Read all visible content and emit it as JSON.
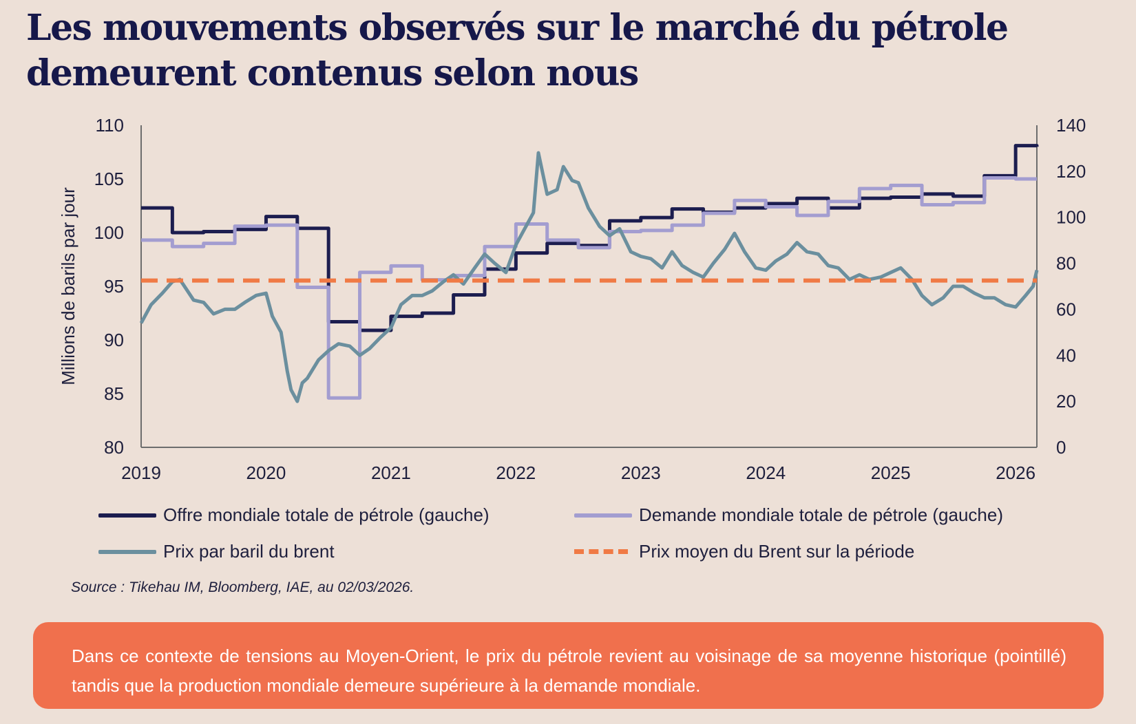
{
  "title": {
    "line1": "Les mouvements observés sur le marché du pétrole",
    "line2": "demeurent contenus selon nous"
  },
  "colors": {
    "background": "#ede0d7",
    "title": "#16184a",
    "supply": "#1c1d4f",
    "demand": "#a39dd0",
    "brent": "#6b8f9e",
    "average": "#f07a45",
    "callout": "#f0704d"
  },
  "legend": {
    "supply": "Offre mondiale totale de pétrole (gauche)",
    "demand": "Demande mondiale totale de pétrole (gauche)",
    "brent": "Prix par baril du brent",
    "average": "Prix moyen du Brent sur la période"
  },
  "source": "Source : Tikehau IM, Bloomberg, IAE, au 02/03/2026.",
  "callout": "Dans ce contexte de tensions au Moyen-Orient, le prix du pétrole revient au voisinage de sa moyenne historique (pointillé) tandis que la production mondiale demeure supérieure à la demande mondiale.",
  "chart_data": {
    "type": "line",
    "ylabel": "Millions de barils par jour",
    "x_ticks": [
      "2019",
      "2020",
      "2021",
      "2022",
      "2023",
      "2024",
      "2025",
      "2026"
    ],
    "xlim": [
      2019,
      2026.17
    ],
    "y_left": {
      "lim": [
        80,
        110
      ],
      "ticks": [
        80,
        85,
        90,
        95,
        100,
        105,
        110
      ]
    },
    "y_right": {
      "lim": [
        0,
        140
      ],
      "ticks": [
        0,
        20,
        40,
        60,
        80,
        100,
        120,
        140
      ]
    },
    "grid": false,
    "legend_position": "bottom",
    "series": [
      {
        "name": "Offre mondiale totale de pétrole (gauche)",
        "axis": "left",
        "style": "step",
        "color": "#1c1d4f",
        "x": [
          2019,
          2019.25,
          2019.5,
          2019.75,
          2020,
          2020.25,
          2020.5,
          2020.75,
          2021,
          2021.25,
          2021.5,
          2021.75,
          2022,
          2022.25,
          2022.5,
          2022.75,
          2023,
          2023.25,
          2023.5,
          2023.75,
          2024,
          2024.25,
          2024.5,
          2024.75,
          2025,
          2025.25,
          2025.5,
          2025.75,
          2026,
          2026.17
        ],
        "y": [
          102.3,
          100.0,
          100.1,
          100.3,
          101.5,
          100.4,
          91.7,
          90.9,
          92.2,
          92.5,
          94.2,
          96.6,
          98.1,
          99.0,
          98.8,
          101.1,
          101.4,
          102.2,
          101.9,
          102.3,
          102.7,
          103.2,
          102.3,
          103.2,
          103.3,
          103.6,
          103.4,
          105.3,
          108.1,
          108.0
        ]
      },
      {
        "name": "Demande mondiale totale de pétrole (gauche)",
        "axis": "left",
        "style": "step",
        "color": "#a39dd0",
        "x": [
          2019,
          2019.25,
          2019.5,
          2019.75,
          2020,
          2020.25,
          2020.5,
          2020.75,
          2021,
          2021.25,
          2021.5,
          2021.75,
          2022,
          2022.25,
          2022.5,
          2022.75,
          2023,
          2023.25,
          2023.5,
          2023.75,
          2024,
          2024.25,
          2024.5,
          2024.75,
          2025,
          2025.25,
          2025.5,
          2025.75,
          2026,
          2026.17
        ],
        "y": [
          99.3,
          98.7,
          99.0,
          100.6,
          100.7,
          94.9,
          84.6,
          96.3,
          96.9,
          95.6,
          96.0,
          98.7,
          100.8,
          99.3,
          98.6,
          100.1,
          100.2,
          100.7,
          101.8,
          103.0,
          102.4,
          101.6,
          102.9,
          104.1,
          104.4,
          102.6,
          102.8,
          105.1,
          105.0,
          105.0
        ]
      },
      {
        "name": "Prix par baril du brent",
        "axis": "right",
        "style": "line",
        "color": "#6b8f9e",
        "x": [
          2019.0,
          2019.08,
          2019.17,
          2019.25,
          2019.31,
          2019.42,
          2019.5,
          2019.58,
          2019.67,
          2019.75,
          2019.83,
          2019.92,
          2020.0,
          2020.05,
          2020.12,
          2020.17,
          2020.2,
          2020.25,
          2020.29,
          2020.33,
          2020.42,
          2020.5,
          2020.58,
          2020.67,
          2020.75,
          2020.83,
          2020.92,
          2021.0,
          2021.08,
          2021.17,
          2021.25,
          2021.33,
          2021.42,
          2021.5,
          2021.58,
          2021.67,
          2021.75,
          2021.83,
          2021.92,
          2022.0,
          2022.08,
          2022.14,
          2022.18,
          2022.25,
          2022.33,
          2022.38,
          2022.45,
          2022.5,
          2022.58,
          2022.67,
          2022.75,
          2022.83,
          2022.92,
          2023.0,
          2023.08,
          2023.17,
          2023.25,
          2023.33,
          2023.42,
          2023.5,
          2023.58,
          2023.67,
          2023.75,
          2023.83,
          2023.92,
          2024.0,
          2024.08,
          2024.17,
          2024.25,
          2024.33,
          2024.42,
          2024.5,
          2024.58,
          2024.67,
          2024.75,
          2024.83,
          2024.92,
          2025.0,
          2025.08,
          2025.17,
          2025.25,
          2025.33,
          2025.42,
          2025.5,
          2025.58,
          2025.67,
          2025.75,
          2025.83,
          2025.92,
          2026.0,
          2026.08,
          2026.14,
          2026.17
        ],
        "y": [
          54,
          62,
          67,
          72,
          73,
          64,
          63,
          58,
          60,
          60,
          63,
          66,
          67,
          57,
          50,
          33,
          25,
          20,
          28,
          30,
          38,
          42,
          45,
          44,
          40,
          43,
          48,
          52,
          62,
          66,
          66,
          68,
          72,
          75,
          71,
          78,
          84,
          80,
          76,
          88,
          96,
          102,
          128,
          110,
          112,
          122,
          116,
          115,
          104,
          96,
          92,
          95,
          85,
          83,
          82,
          78,
          85,
          79,
          76,
          74,
          80,
          86,
          93,
          85,
          78,
          77,
          81,
          84,
          89,
          85,
          84,
          79,
          78,
          73,
          75,
          73,
          74,
          76,
          78,
          73,
          66,
          62,
          65,
          70,
          70,
          67,
          65,
          65,
          62,
          61,
          66,
          70,
          77
        ]
      },
      {
        "name": "Prix moyen du Brent sur la période",
        "axis": "right",
        "style": "dashed",
        "color": "#f07a45",
        "x": [
          2019,
          2026.17
        ],
        "y": [
          72.5,
          72.5
        ]
      }
    ]
  }
}
